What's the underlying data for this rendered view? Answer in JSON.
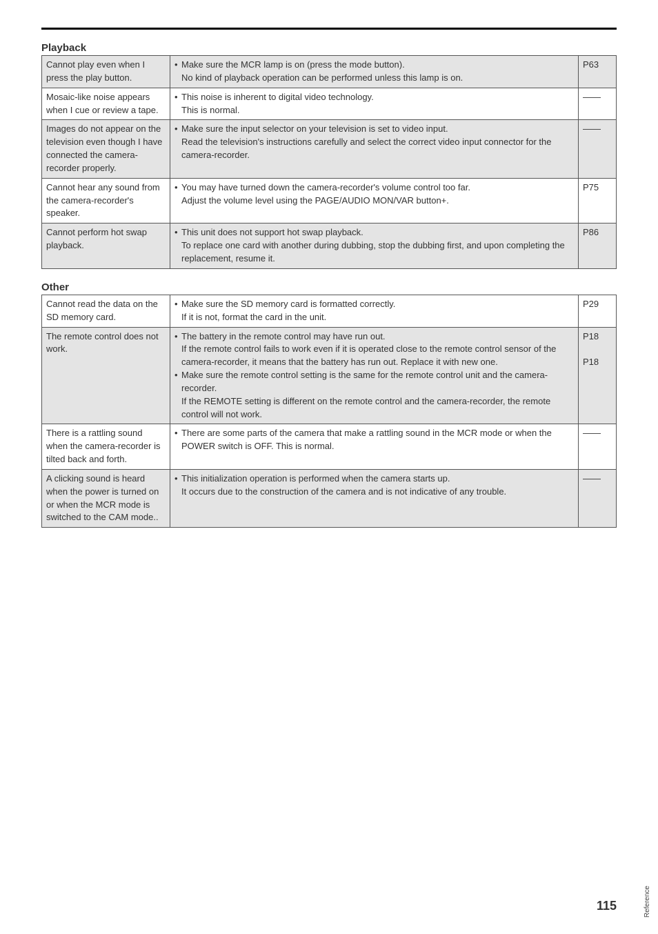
{
  "top": {
    "title_playback": "Playback",
    "title_other": "Other"
  },
  "playback": [
    {
      "shade": true,
      "col1": "Cannot play even when I press the play button.",
      "bullets": [
        {
          "t": "Make sure the MCR lamp is on (press the mode button).\nNo kind of playback operation can be performed unless this lamp is on."
        }
      ],
      "ref": "P63"
    },
    {
      "shade": false,
      "col1": "Mosaic-like noise appears when I cue or review a tape.",
      "bullets": [
        {
          "t": "This noise is inherent to digital video technology.\nThis is normal."
        }
      ],
      "ref": "——"
    },
    {
      "shade": true,
      "col1": "Images do not appear on the television even though I have connected the camera-recorder properly.",
      "bullets": [
        {
          "t": "Make sure the input selector on your television is set to video input.\nRead the television's instructions carefully and select the correct video input connector for the camera-recorder."
        }
      ],
      "ref": "——"
    },
    {
      "shade": false,
      "col1": "Cannot hear any sound from the camera-recorder's speaker.",
      "bullets": [
        {
          "t": "You may have turned down the camera-recorder's volume control too far.\nAdjust the volume level using the PAGE/AUDIO MON/VAR button+."
        }
      ],
      "ref": "P75"
    },
    {
      "shade": true,
      "col1": "Cannot perform hot swap playback.",
      "bullets": [
        {
          "t": "This unit does not support hot swap playback.\nTo replace one card with another during dubbing, stop the dubbing first, and upon completing the replacement, resume it."
        }
      ],
      "ref": "P86"
    }
  ],
  "other": [
    {
      "shade": false,
      "col1": "Cannot read the data on the SD memory card.",
      "bullets": [
        {
          "t": "Make sure the SD memory card is formatted correctly.\nIf it is not, format the card in the unit."
        }
      ],
      "ref": "P29"
    },
    {
      "shade": true,
      "col1": "The remote control does not work.",
      "bullets": [
        {
          "t": "The battery in the remote control may have run out.\nIf the remote control fails to work even if it is operated close to the remote control sensor of the camera-recorder, it means that the battery has run out. Replace it with new one."
        },
        {
          "t": "Make sure the remote control setting is the same for the remote control unit and the camera-recorder.\nIf the REMOTE setting is different on the remote control and the camera-recorder, the remote control will not work."
        }
      ],
      "ref": "P18\n\nP18",
      "ref_multi": true
    },
    {
      "shade": false,
      "col1": "There is a rattling sound when the camera-recorder is tilted back and forth.",
      "bullets": [
        {
          "t": "There are some parts of the camera that make a rattling sound in the MCR mode or when the POWER switch is OFF. This is normal."
        }
      ],
      "ref": "——"
    },
    {
      "shade": true,
      "col1": "A clicking sound is heard when the power is turned on or when the MCR mode is switched to the CAM mode..",
      "bullets": [
        {
          "t": "This initialization operation is performed when the camera starts up.\nIt occurs due to the construction of the camera and is not indicative of any trouble."
        }
      ],
      "ref": "——"
    }
  ],
  "side_tab": "Reference",
  "page_num": "115"
}
